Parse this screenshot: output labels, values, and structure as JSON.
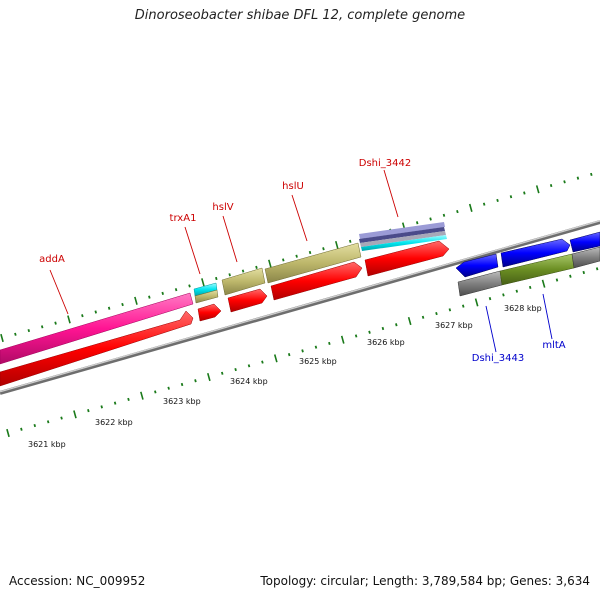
{
  "header": {
    "title": "Dinoroseobacter shibae DFL 12, complete genome"
  },
  "footer": {
    "accession": "Accession: NC_009952",
    "summary": "Topology: circular; Length: 3,789,584 bp; Genes: 3,634"
  },
  "scale_labels": [
    "3621 kbp",
    "3622 kbp",
    "3623 kbp",
    "3624 kbp",
    "3625 kbp",
    "3626 kbp",
    "3627 kbp",
    "3628 kbp"
  ],
  "gene_labels": {
    "addA": "addA",
    "trxA1": "trxA1",
    "hslV": "hslV",
    "hslU": "hslU",
    "dshi3442": "Dshi_3442",
    "dshi3443": "Dshi_3443",
    "mltA": "mltA"
  },
  "colors": {
    "forward_label": "#cc0000",
    "reverse_label": "#0000cc",
    "tick_green": "#1a7a1a",
    "backbone": "#8a8a8a",
    "cds_red": "#ff0000",
    "addA_magenta": "#ff1493",
    "trxA1_cyan": "#00e5ee",
    "hsl_olive": "#bdb76b",
    "cds_blue": "#0000ff",
    "mltA_green": "#6b8e23",
    "grey_feature": "#777777"
  }
}
